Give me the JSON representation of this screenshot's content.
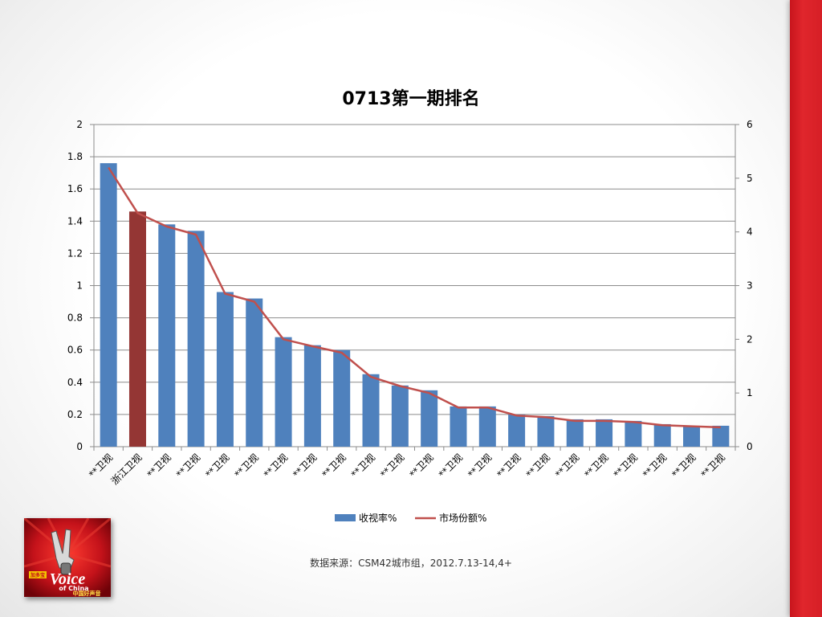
{
  "source_text": "数据来源：CSM42城市组，2012.7.13-14,4+",
  "logo": {
    "icon": "the-voice-of-china-logo",
    "text_top": "加多宝",
    "text_main": "Voice",
    "text_sub": "of China",
    "text_cn": "中国好声音"
  },
  "colors": {
    "bar": "#4f81bd",
    "bar_highlight": "#943634",
    "line": "#c0504d",
    "band": "#d61f26"
  },
  "chart_data": {
    "type": "bar",
    "title": "0713第一期排名",
    "categories": [
      "**卫视",
      "浙江卫视",
      "**卫视",
      "**卫视",
      "**卫视",
      "**卫视",
      "**卫视",
      "**卫视",
      "**卫视",
      "**卫视",
      "**卫视",
      "**卫视",
      "**卫视",
      "**卫视",
      "**卫视",
      "**卫视",
      "**卫视",
      "**卫视",
      "**卫视",
      "**卫视",
      "**卫视",
      "**卫视"
    ],
    "highlight_index": 1,
    "series": [
      {
        "name": "收视率%",
        "type": "bar",
        "axis": "left",
        "values": [
          1.76,
          1.46,
          1.38,
          1.34,
          0.96,
          0.92,
          0.68,
          0.63,
          0.6,
          0.45,
          0.38,
          0.35,
          0.25,
          0.25,
          0.2,
          0.19,
          0.17,
          0.17,
          0.16,
          0.14,
          0.13,
          0.13
        ]
      },
      {
        "name": "市场份额%",
        "type": "line",
        "axis": "right",
        "values": [
          5.2,
          4.35,
          4.1,
          3.95,
          2.85,
          2.7,
          2.0,
          1.87,
          1.75,
          1.3,
          1.13,
          1.0,
          0.73,
          0.73,
          0.58,
          0.55,
          0.48,
          0.48,
          0.46,
          0.4,
          0.38,
          0.36
        ]
      }
    ],
    "y_left": {
      "min": 0,
      "max": 2,
      "ticks": [
        "0",
        "0.2",
        "0.4",
        "0.6",
        "0.8",
        "1",
        "1.2",
        "1.4",
        "1.6",
        "1.8",
        "2"
      ]
    },
    "y_right": {
      "min": 0,
      "max": 6,
      "ticks": [
        "0",
        "1",
        "2",
        "3",
        "4",
        "5",
        "6"
      ]
    },
    "grid": true,
    "legend_position": "bottom"
  }
}
